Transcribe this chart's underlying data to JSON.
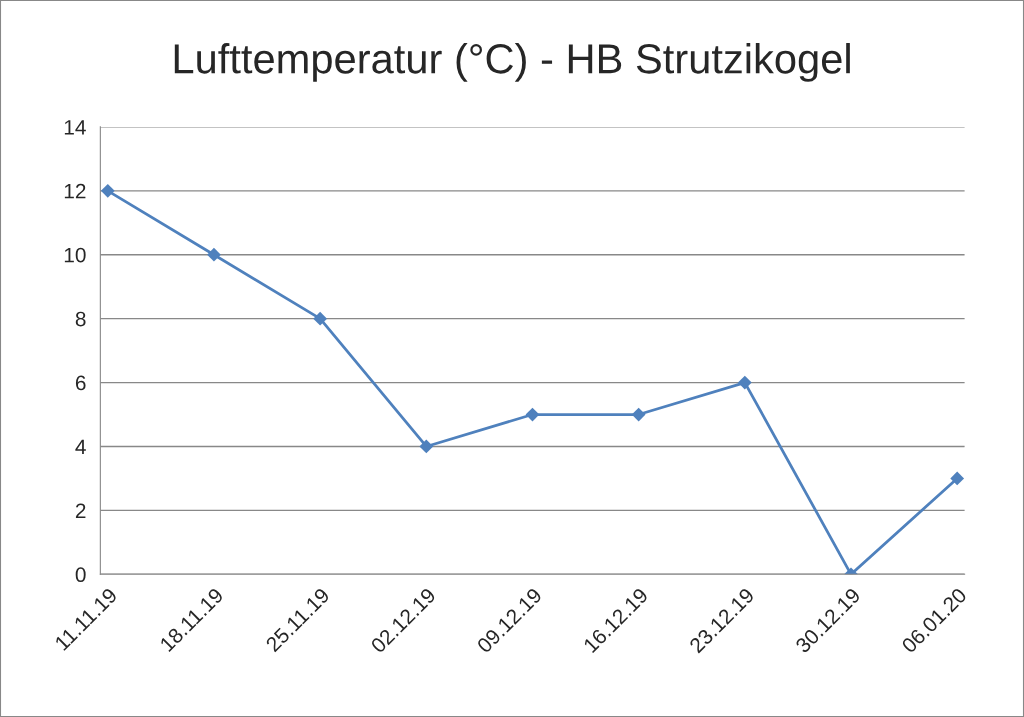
{
  "chart_data": {
    "type": "line",
    "title": "Lufttemperatur (°C) - HB Strutzikogel",
    "categories": [
      "11.11.19",
      "18.11.19",
      "25.11.19",
      "02.12.19",
      "09.12.19",
      "16.12.19",
      "23.12.19",
      "30.12.19",
      "06.01.20"
    ],
    "series": [
      {
        "color": "#4f81bd",
        "values": [
          12,
          10,
          8,
          4,
          5,
          5,
          6,
          0,
          3
        ]
      }
    ],
    "ylim": [
      0,
      14
    ],
    "yticks": [
      0,
      2,
      4,
      6,
      8,
      10,
      12,
      14
    ],
    "grid": "y",
    "marker": "diamond",
    "line_style": "solid"
  }
}
